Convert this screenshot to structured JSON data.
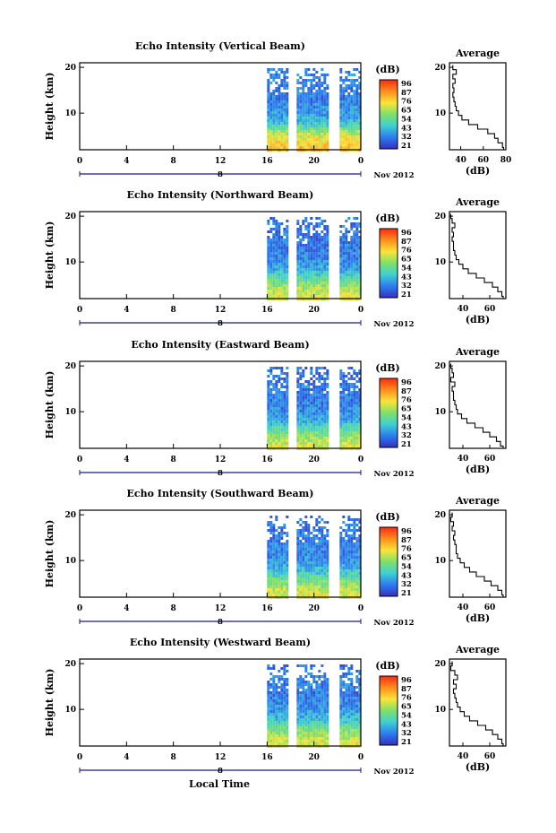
{
  "figure": {
    "xlabel": "Local Time",
    "date_label": "Nov 2012",
    "colorbar_unit": "(dB)",
    "colorbar_ticks": [
      "96",
      "87",
      "76",
      "65",
      "54",
      "43",
      "32",
      "21"
    ],
    "colorbar_colors": [
      "#ff2a12",
      "#ff8e1c",
      "#fbe43a",
      "#7fe06a",
      "#3fd0d2",
      "#2d7cef",
      "#3630c0"
    ]
  },
  "chart_data": [
    {
      "type": "heatmap",
      "title": "Echo Intensity (Vertical Beam)",
      "ylabel": "Height (km)",
      "xlabel": "Local Time",
      "x_ticks": [
        "0",
        "4",
        "8",
        "12",
        "16",
        "20",
        "0"
      ],
      "x_range_hours": [
        0,
        24
      ],
      "y_ticks": [
        "10",
        "20"
      ],
      "ylim_km": [
        2,
        21
      ],
      "colorbar": {
        "label": "(dB)",
        "range": [
          21,
          98
        ]
      },
      "data_coverage_hours": [
        16,
        24
      ],
      "date_under_axis": "8",
      "profile": {
        "title": "Average",
        "xlabel": "(dB)",
        "ylabel": "Height (km)",
        "x_ticks": [
          "40",
          "60",
          "80"
        ],
        "xlim": [
          30,
          80
        ],
        "heights_km": [
          2,
          3,
          4,
          5,
          6,
          7,
          8,
          9,
          10,
          11,
          12,
          13,
          14,
          15,
          16,
          17,
          18,
          19,
          20
        ],
        "values_db": [
          78,
          77,
          73,
          70,
          64,
          55,
          47,
          41,
          38,
          36,
          35,
          34,
          33,
          34,
          33,
          35,
          33,
          36,
          33
        ]
      }
    },
    {
      "type": "heatmap",
      "title": "Echo Intensity (Northward Beam)",
      "ylabel": "Height (km)",
      "xlabel": "Local Time",
      "x_ticks": [
        "0",
        "4",
        "8",
        "12",
        "16",
        "20",
        "0"
      ],
      "x_range_hours": [
        0,
        24
      ],
      "y_ticks": [
        "10",
        "20"
      ],
      "ylim_km": [
        2,
        21
      ],
      "colorbar": {
        "label": "(dB)",
        "range": [
          21,
          98
        ]
      },
      "data_coverage_hours": [
        16,
        24
      ],
      "date_under_axis": "8",
      "profile": {
        "title": "Average",
        "xlabel": "(dB)",
        "ylabel": "Height (km)",
        "x_ticks": [
          "40",
          "60"
        ],
        "xlim": [
          30,
          72
        ],
        "heights_km": [
          2,
          3,
          4,
          5,
          6,
          7,
          8,
          9,
          10,
          11,
          12,
          13,
          14,
          15,
          16,
          17,
          18,
          19,
          20
        ],
        "values_db": [
          70,
          69,
          66,
          62,
          56,
          50,
          44,
          40,
          37,
          35,
          34,
          33,
          33,
          32,
          33,
          32,
          34,
          32,
          31
        ]
      }
    },
    {
      "type": "heatmap",
      "title": "Echo Intensity (Eastward Beam)",
      "ylabel": "Height (km)",
      "xlabel": "Local Time",
      "x_ticks": [
        "0",
        "4",
        "8",
        "12",
        "16",
        "20",
        "0"
      ],
      "x_range_hours": [
        0,
        24
      ],
      "y_ticks": [
        "10",
        "20"
      ],
      "ylim_km": [
        2,
        21
      ],
      "colorbar": {
        "label": "(dB)",
        "range": [
          21,
          98
        ]
      },
      "data_coverage_hours": [
        16,
        24
      ],
      "date_under_axis": "8",
      "profile": {
        "title": "Average",
        "xlabel": "(dB)",
        "ylabel": "Height (km)",
        "x_ticks": [
          "40",
          "60"
        ],
        "xlim": [
          30,
          72
        ],
        "heights_km": [
          2,
          3,
          4,
          5,
          6,
          7,
          8,
          9,
          10,
          11,
          12,
          13,
          14,
          15,
          16,
          17,
          18,
          19,
          20
        ],
        "values_db": [
          70,
          68,
          65,
          60,
          55,
          49,
          43,
          39,
          36,
          35,
          34,
          33,
          33,
          32,
          34,
          31,
          33,
          32,
          31
        ]
      }
    },
    {
      "type": "heatmap",
      "title": "Echo Intensity (Southward Beam)",
      "ylabel": "Height (km)",
      "xlabel": "Local Time",
      "x_ticks": [
        "0",
        "4",
        "8",
        "12",
        "16",
        "20",
        "0"
      ],
      "x_range_hours": [
        0,
        24
      ],
      "y_ticks": [
        "10",
        "20"
      ],
      "ylim_km": [
        2,
        21
      ],
      "colorbar": {
        "label": "(dB)",
        "range": [
          21,
          98
        ]
      },
      "data_coverage_hours": [
        16,
        24
      ],
      "date_under_axis": "8",
      "profile": {
        "title": "Average",
        "xlabel": "(dB)",
        "ylabel": "Height (km)",
        "x_ticks": [
          "40",
          "60"
        ],
        "xlim": [
          30,
          72
        ],
        "heights_km": [
          2,
          3,
          4,
          5,
          6,
          7,
          8,
          9,
          10,
          11,
          12,
          13,
          14,
          15,
          16,
          17,
          18,
          19,
          20
        ],
        "values_db": [
          70,
          69,
          66,
          61,
          56,
          50,
          45,
          41,
          38,
          36,
          35,
          35,
          34,
          33,
          34,
          32,
          33,
          31,
          32
        ]
      }
    },
    {
      "type": "heatmap",
      "title": "Echo Intensity (Westward Beam)",
      "ylabel": "Height (km)",
      "xlabel": "Local Time",
      "x_ticks": [
        "0",
        "4",
        "8",
        "12",
        "16",
        "20",
        "0"
      ],
      "x_range_hours": [
        0,
        24
      ],
      "y_ticks": [
        "10",
        "20"
      ],
      "ylim_km": [
        2,
        21
      ],
      "colorbar": {
        "label": "(dB)",
        "range": [
          21,
          98
        ]
      },
      "data_coverage_hours": [
        16,
        24
      ],
      "date_under_axis": "8",
      "profile": {
        "title": "Average",
        "xlabel": "(dB)",
        "ylabel": "Height (km)",
        "x_ticks": [
          "40",
          "60"
        ],
        "xlim": [
          30,
          72
        ],
        "heights_km": [
          2,
          3,
          4,
          5,
          6,
          7,
          8,
          9,
          10,
          11,
          12,
          13,
          14,
          15,
          16,
          17,
          18,
          19,
          20
        ],
        "values_db": [
          70,
          69,
          66,
          62,
          57,
          51,
          45,
          41,
          38,
          36,
          35,
          34,
          33,
          35,
          33,
          36,
          34,
          31,
          32
        ]
      }
    }
  ]
}
